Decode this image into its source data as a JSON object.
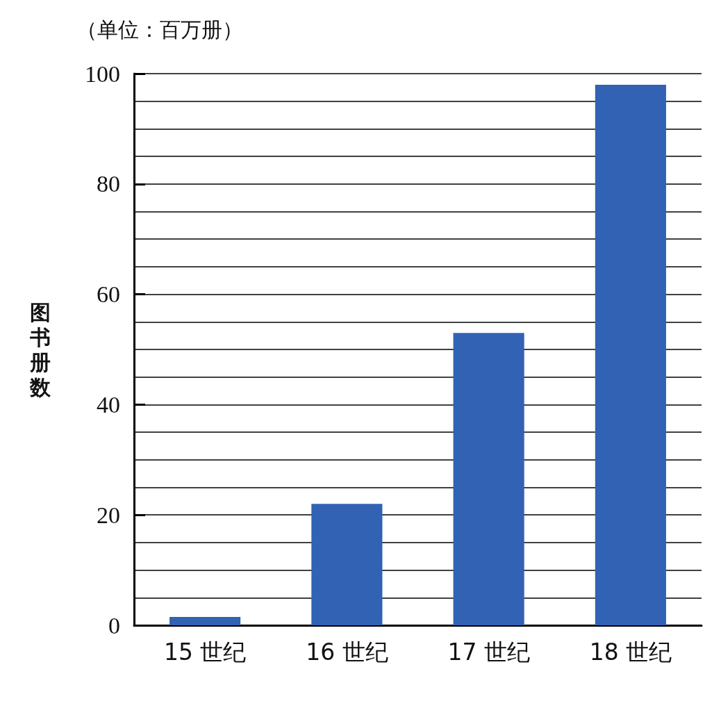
{
  "chart_data": {
    "type": "bar",
    "title": "（单位：百万册）",
    "ylabel": "图书册数",
    "categories": [
      "15 世纪",
      "16 世纪",
      "17 世纪",
      "18 世纪"
    ],
    "values": [
      1.5,
      22,
      53,
      98
    ],
    "color": "#3162b4",
    "ylim": [
      0,
      100
    ],
    "yticks": [
      0,
      {
        "value": 5,
        "label": null
      },
      {
        "value": 10,
        "label": null
      },
      {
        "value": 15,
        "label": null
      },
      20,
      {
        "value": 25,
        "label": null
      },
      {
        "value": 30,
        "label": null
      },
      {
        "value": 35,
        "label": null
      },
      40,
      {
        "value": 45,
        "label": null
      },
      {
        "value": 50,
        "label": null
      },
      {
        "value": 55,
        "label": null
      },
      60,
      {
        "value": 65,
        "label": null
      },
      {
        "value": 70,
        "label": null
      },
      {
        "value": 75,
        "label": null
      },
      80,
      {
        "value": 85,
        "label": null
      },
      {
        "value": 90,
        "label": null
      },
      {
        "value": 95,
        "label": null
      },
      100
    ],
    "grid": "y"
  }
}
